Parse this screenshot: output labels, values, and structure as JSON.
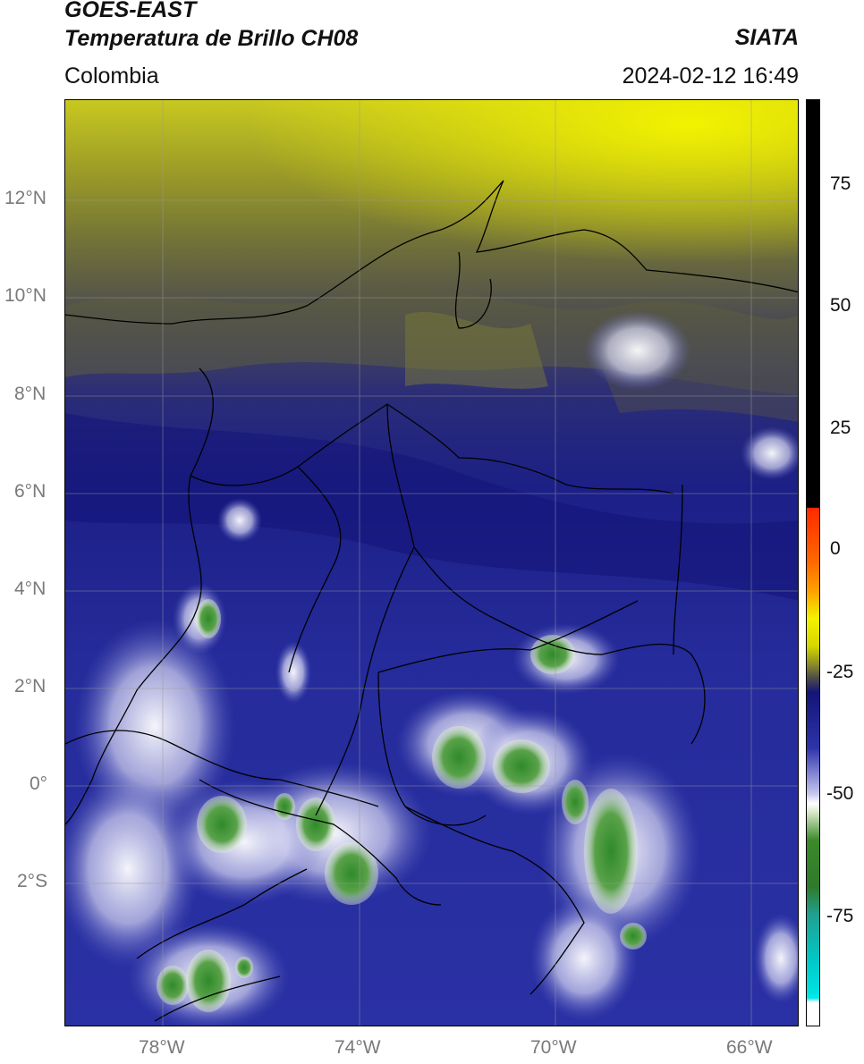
{
  "header": {
    "satellite": "GOES-EAST",
    "product": "Temperatura de Brillo CH08",
    "agency": "SIATA",
    "region": "Colombia",
    "timestamp": "2024-02-12 16:49"
  },
  "map": {
    "lat_labels": [
      "12°N",
      "10°N",
      "8°N",
      "6°N",
      "4°N",
      "2°N",
      "0°",
      "2°S"
    ],
    "lon_labels": [
      "78°W",
      "74°W",
      "70°W",
      "66°W"
    ]
  },
  "colorbar": {
    "ticks": [
      "75",
      "50",
      "25",
      "0",
      "-25",
      "-50",
      "-75"
    ],
    "range": [
      -95,
      90
    ],
    "colors": {
      "black": "#000000",
      "red": "#ff2a00",
      "orange": "#ff9a00",
      "yellow": "#f2f200",
      "olive": "#8a8a2a",
      "navy": "#141478",
      "blue": "#2e34a8",
      "lavender": "#c8c8ee",
      "white": "#ffffff",
      "green": "#3a8a2a",
      "teal": "#20a090",
      "cyan": "#00e6e6"
    }
  }
}
